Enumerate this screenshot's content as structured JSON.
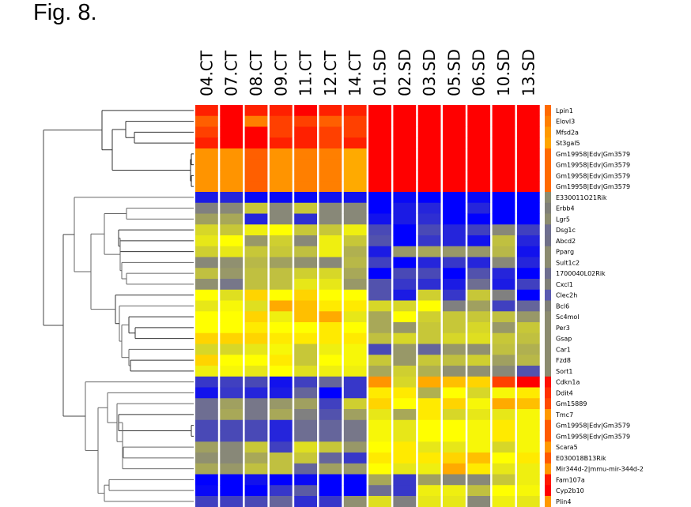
{
  "figure": {
    "title": "Fig. 8."
  },
  "chart_data": {
    "type": "heatmap",
    "title": "Fig. 8.",
    "xlabel": "",
    "ylabel": "",
    "columns": [
      "04.CT",
      "07.CT",
      "08.CT",
      "09.CT",
      "11.CT",
      "12.CT",
      "14.CT",
      "01.SD",
      "02.SD",
      "03.SD",
      "05.SD",
      "06.SD",
      "10.SD",
      "13.SD"
    ],
    "rows": [
      "Lpin1",
      "Elovl3",
      "Mfsd2a",
      "St3gal5",
      "Gm19958|Edv|Gm3579",
      "Gm19958|Edv|Gm3579",
      "Gm19958|Edv|Gm3579",
      "Gm19958|Edv|Gm3579",
      "E330011O21Rik",
      "Erbb4",
      "Lgr5",
      "Dsg1c",
      "Abcd2",
      "Pparg",
      "Sult1c2",
      "1700040L02Rik",
      "Cxcl1",
      "Clec2h",
      "Bcl6",
      "Sc4mol",
      "Per3",
      "Gsap",
      "Car1",
      "Fzd8",
      "Sort1",
      "Cdkn1a",
      "Ddit4",
      "Gm15889",
      "Tmc7",
      "Gm19958|Edv|Gm3579",
      "Gm19958|Edv|Gm3579",
      "Scara5",
      "E030018B13Rik",
      "Mir344d-2|mmu-mir-344d-2",
      "Fam107a",
      "Cyp2b10",
      "Plin4"
    ],
    "color_scale": {
      "low": "#0000ff",
      "mid_low": "#808080",
      "mid_high": "#ffff00",
      "high": "#ff0000",
      "range": [
        -2,
        2
      ]
    },
    "side_colors": [
      "#ff6a00",
      "#ff7f00",
      "#ff9900",
      "#ffa500",
      "#ff6a00",
      "#ff6a00",
      "#ff6a00",
      "#ff6a00",
      "#8c8c70",
      "#7f7f78",
      "#8c8c70",
      "#6f6f90",
      "#707088",
      "#8c8c70",
      "#8c8c70",
      "#6f6f90",
      "#7f7f78",
      "#5a5ab0",
      "#7f7f78",
      "#8c8c70",
      "#8c8c70",
      "#8c8c70",
      "#8c8c70",
      "#8c8c70",
      "#8c8c70",
      "#ff1000",
      "#ff3000",
      "#ff4a00",
      "#ff9900",
      "#ff5a00",
      "#ff5a00",
      "#ff9900",
      "#ff5a00",
      "#ff9900",
      "#ff1a00",
      "#ff0000",
      "#ff9900"
    ],
    "values": [
      [
        1.9,
        2.0,
        1.9,
        1.9,
        2.0,
        1.9,
        1.9,
        2.0,
        2.0,
        2.0,
        2.0,
        2.0,
        2.0,
        2.0
      ],
      [
        1.7,
        2.0,
        1.6,
        1.8,
        1.8,
        1.7,
        1.8,
        2.0,
        2.0,
        2.0,
        2.0,
        2.0,
        2.0,
        2.0
      ],
      [
        1.8,
        2.0,
        2.0,
        1.8,
        1.9,
        1.8,
        1.8,
        2.0,
        2.0,
        2.0,
        2.0,
        2.0,
        2.0,
        2.0
      ],
      [
        1.9,
        2.0,
        2.0,
        1.9,
        1.9,
        1.8,
        1.9,
        2.0,
        2.0,
        2.0,
        2.0,
        2.0,
        2.0,
        2.0
      ],
      [
        1.5,
        1.5,
        1.7,
        1.5,
        1.6,
        1.6,
        1.4,
        2.0,
        2.0,
        2.0,
        2.0,
        2.0,
        2.0,
        2.0
      ],
      [
        1.5,
        1.5,
        1.7,
        1.5,
        1.6,
        1.6,
        1.4,
        2.0,
        2.0,
        2.0,
        2.0,
        2.0,
        2.0,
        2.0
      ],
      [
        1.5,
        1.5,
        1.7,
        1.5,
        1.6,
        1.6,
        1.4,
        2.0,
        2.0,
        2.0,
        2.0,
        2.0,
        2.0,
        2.0
      ],
      [
        1.5,
        1.5,
        1.7,
        1.5,
        1.6,
        1.6,
        1.4,
        2.0,
        2.0,
        2.0,
        2.0,
        2.0,
        2.0,
        2.0
      ],
      [
        -1.7,
        -1.6,
        -1.9,
        -1.9,
        -1.9,
        -1.8,
        -1.8,
        -2.0,
        -1.9,
        -2.0,
        -2.0,
        -1.9,
        -2.0,
        -2.0
      ],
      [
        -0.6,
        -0.5,
        0.3,
        -0.5,
        0.3,
        -0.5,
        -0.5,
        -2.0,
        -1.7,
        -1.6,
        -2.0,
        -1.6,
        -2.0,
        -2.0
      ],
      [
        -0.2,
        -0.1,
        -1.6,
        -0.5,
        -1.5,
        -0.5,
        -0.5,
        -1.8,
        -1.7,
        -1.5,
        -2.0,
        -2.0,
        -2.0,
        -2.0
      ],
      [
        0.5,
        0.3,
        0.8,
        1.0,
        0.3,
        0.3,
        0.8,
        -1.2,
        -2.0,
        -1.2,
        -1.6,
        -1.3,
        -0.5,
        -1.3
      ],
      [
        0.7,
        1.0,
        -0.3,
        0.4,
        -0.5,
        0.8,
        0.3,
        -1.1,
        -2.0,
        -1.4,
        -1.6,
        -1.8,
        0.2,
        -1.6
      ],
      [
        0.4,
        0.7,
        0.3,
        0.3,
        0.2,
        0.8,
        0.0,
        -1.7,
        -0.3,
        -0.1,
        -0.3,
        -0.3,
        0.1,
        -1.8
      ],
      [
        -0.5,
        -0.4,
        0.1,
        -0.2,
        -0.4,
        -0.5,
        0.1,
        -1.3,
        -2.0,
        -1.6,
        -1.4,
        -1.6,
        -0.5,
        -1.6
      ],
      [
        0.2,
        -0.3,
        0.2,
        0.2,
        0.4,
        0.5,
        -0.1,
        -2.0,
        -1.2,
        -1.2,
        -2.0,
        -1.1,
        -1.6,
        -2.0
      ],
      [
        -0.4,
        -0.7,
        0.2,
        0.2,
        0.7,
        0.7,
        -0.3,
        -1.1,
        -1.4,
        -1.5,
        -1.7,
        -0.8,
        -1.7,
        -1.3
      ],
      [
        1.0,
        0.6,
        1.2,
        1.0,
        1.2,
        1.0,
        1.0,
        -1.1,
        -1.7,
        0.4,
        -1.4,
        0.3,
        -0.6,
        -2.0
      ],
      [
        0.7,
        0.9,
        0.6,
        1.4,
        1.3,
        1.1,
        1.1,
        0.5,
        0.5,
        1.0,
        -0.6,
        -0.2,
        -1.3,
        -0.9
      ],
      [
        1.0,
        1.0,
        1.2,
        0.8,
        1.3,
        1.4,
        0.7,
        -0.1,
        1.0,
        0.4,
        0.3,
        0.3,
        0.2,
        -0.3
      ],
      [
        1.0,
        1.0,
        1.1,
        1.0,
        1.0,
        1.1,
        1.0,
        -0.1,
        -0.3,
        0.3,
        0.3,
        0.5,
        -0.3,
        0.3
      ],
      [
        1.2,
        1.2,
        1.2,
        1.1,
        1.1,
        1.1,
        1.1,
        0.2,
        0.5,
        0.3,
        0.5,
        0.6,
        0.3,
        0.2
      ],
      [
        0.5,
        0.5,
        0.7,
        0.9,
        0.3,
        0.8,
        0.9,
        -1.2,
        -0.3,
        -0.9,
        -0.3,
        -0.4,
        0.2,
        0.0
      ],
      [
        1.2,
        1.0,
        1.0,
        1.1,
        0.3,
        1.0,
        0.9,
        0.3,
        -0.3,
        0.3,
        0.2,
        0.4,
        -0.2,
        0.1
      ],
      [
        0.8,
        0.9,
        0.7,
        1.0,
        0.6,
        0.8,
        0.8,
        -0.1,
        0.4,
        0.0,
        -0.4,
        -0.4,
        -0.5,
        -1.1
      ],
      [
        -1.4,
        -1.3,
        -1.2,
        -1.8,
        -1.3,
        -0.9,
        -1.4,
        1.5,
        0.5,
        1.4,
        1.3,
        1.2,
        1.8,
        2.0
      ],
      [
        -1.8,
        -1.4,
        -1.6,
        -1.7,
        -0.9,
        -2.0,
        -1.4,
        1.1,
        1.1,
        0.0,
        1.0,
        0.5,
        0.9,
        1.1
      ],
      [
        -0.8,
        -0.2,
        -0.7,
        -0.3,
        -0.2,
        -1.3,
        0.4,
        1.2,
        1.0,
        1.1,
        1.2,
        0.9,
        1.4,
        1.3
      ],
      [
        -0.8,
        -0.1,
        -0.7,
        -0.1,
        -0.6,
        -1.1,
        -0.2,
        0.7,
        -0.1,
        1.1,
        0.5,
        0.7,
        0.7,
        0.9
      ],
      [
        -1.2,
        -1.2,
        -1.2,
        -1.6,
        -0.8,
        -0.9,
        -0.7,
        0.9,
        0.7,
        1.0,
        1.0,
        0.9,
        1.1,
        0.9
      ],
      [
        -1.2,
        -1.2,
        -1.2,
        -1.6,
        -0.8,
        -0.9,
        -0.7,
        0.9,
        0.7,
        1.0,
        1.0,
        0.9,
        1.1,
        0.9
      ],
      [
        -0.2,
        -0.5,
        0.3,
        -1.3,
        0.6,
        0.3,
        -0.3,
        1.0,
        1.1,
        0.7,
        0.7,
        0.9,
        0.5,
        0.9
      ],
      [
        -0.4,
        -0.5,
        -0.1,
        0.2,
        0.3,
        -0.9,
        -1.4,
        1.1,
        1.1,
        1.1,
        1.2,
        1.3,
        1.0,
        1.1
      ],
      [
        -0.1,
        -0.3,
        0.2,
        0.2,
        -0.9,
        -0.2,
        -0.3,
        1.0,
        0.7,
        0.8,
        1.4,
        1.1,
        0.7,
        0.8
      ],
      [
        -2.0,
        -2.0,
        -1.8,
        -2.0,
        -1.9,
        -2.0,
        -2.0,
        -0.1,
        -1.4,
        -0.2,
        -0.5,
        -0.5,
        0.3,
        0.8
      ],
      [
        -1.9,
        -2.0,
        -2.0,
        -1.4,
        -1.0,
        -2.0,
        -2.0,
        -0.8,
        -1.4,
        0.8,
        0.8,
        0.2,
        1.0,
        0.9
      ],
      [
        -1.3,
        -1.3,
        -1.2,
        -0.9,
        -1.5,
        -1.4,
        -0.4,
        0.6,
        -0.6,
        0.7,
        0.7,
        -0.5,
        0.8,
        0.7
      ]
    ],
    "legend": "none",
    "dendrogram": "rows-left"
  }
}
